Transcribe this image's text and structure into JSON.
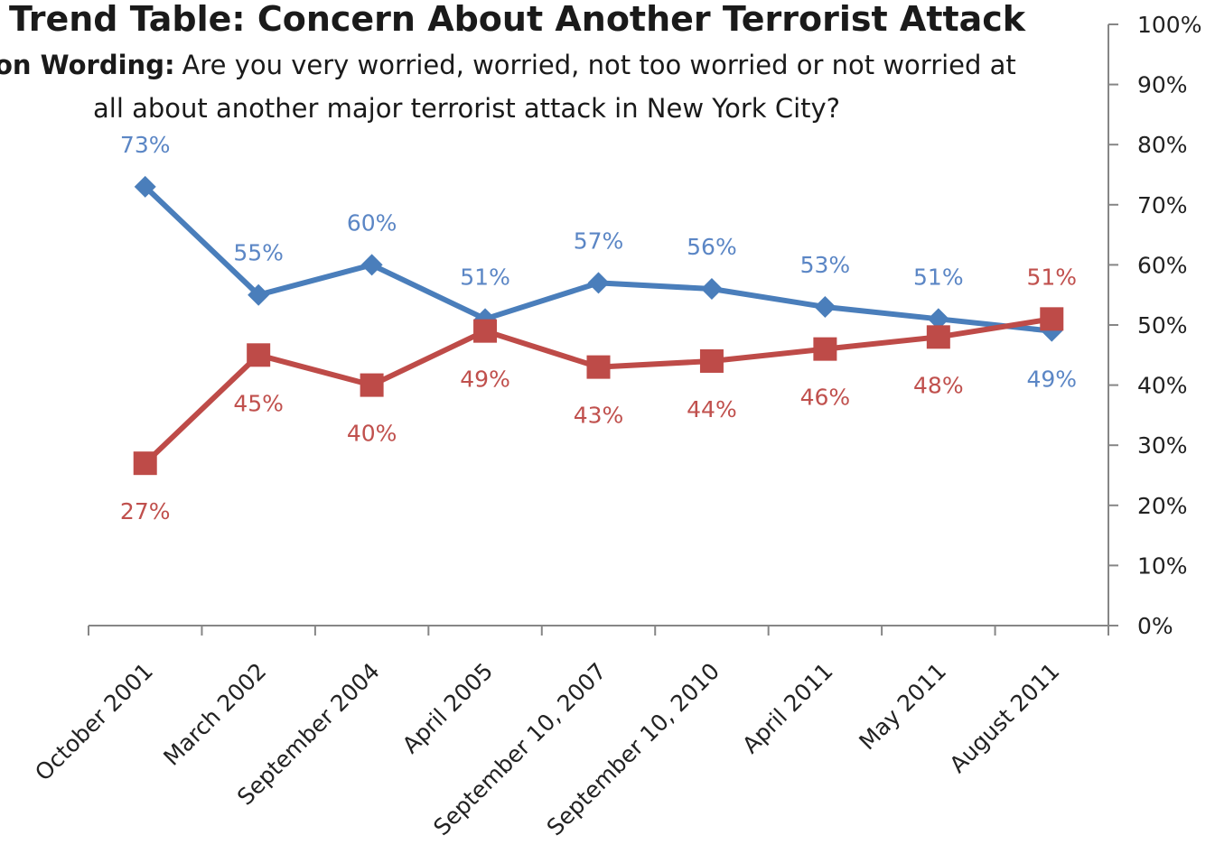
{
  "chart_data": {
    "type": "line",
    "title": "Trend Table: Concern About Another Terrorist Attack",
    "subtitle_bold": "on Wording:",
    "subtitle_line1": "Are you very worried, worried, not too worried or not worried at",
    "subtitle_line2": "all about another major terrorist attack in New York City?",
    "categories": [
      "October 2001",
      "March 2002",
      "September 2004",
      "April 2005",
      "September 10, 2007",
      "September 10, 2010",
      "April 2011",
      "May 2011",
      "August 2011"
    ],
    "series": [
      {
        "values": [
          73,
          55,
          60,
          51,
          57,
          56,
          53,
          51,
          49
        ],
        "labels": [
          "73%",
          "55%",
          "60%",
          "51%",
          "57%",
          "56%",
          "53%",
          "51%",
          "49%"
        ],
        "color": "#4a7ebb",
        "label_color": "#5b86c5",
        "marker": "diamond"
      },
      {
        "values": [
          27,
          45,
          40,
          49,
          43,
          44,
          46,
          48,
          51
        ],
        "labels": [
          "27%",
          "45%",
          "40%",
          "49%",
          "43%",
          "44%",
          "46%",
          "48%",
          "51%"
        ],
        "color": "#be4b48",
        "label_color": "#c0504d",
        "marker": "square"
      }
    ],
    "y_ticks": [
      "0%",
      "10%",
      "20%",
      "30%",
      "40%",
      "50%",
      "60%",
      "70%",
      "80%",
      "90%",
      "100%"
    ],
    "ylim": [
      0,
      100
    ],
    "y_axis_side": "right",
    "grid": false,
    "legend": "none"
  }
}
